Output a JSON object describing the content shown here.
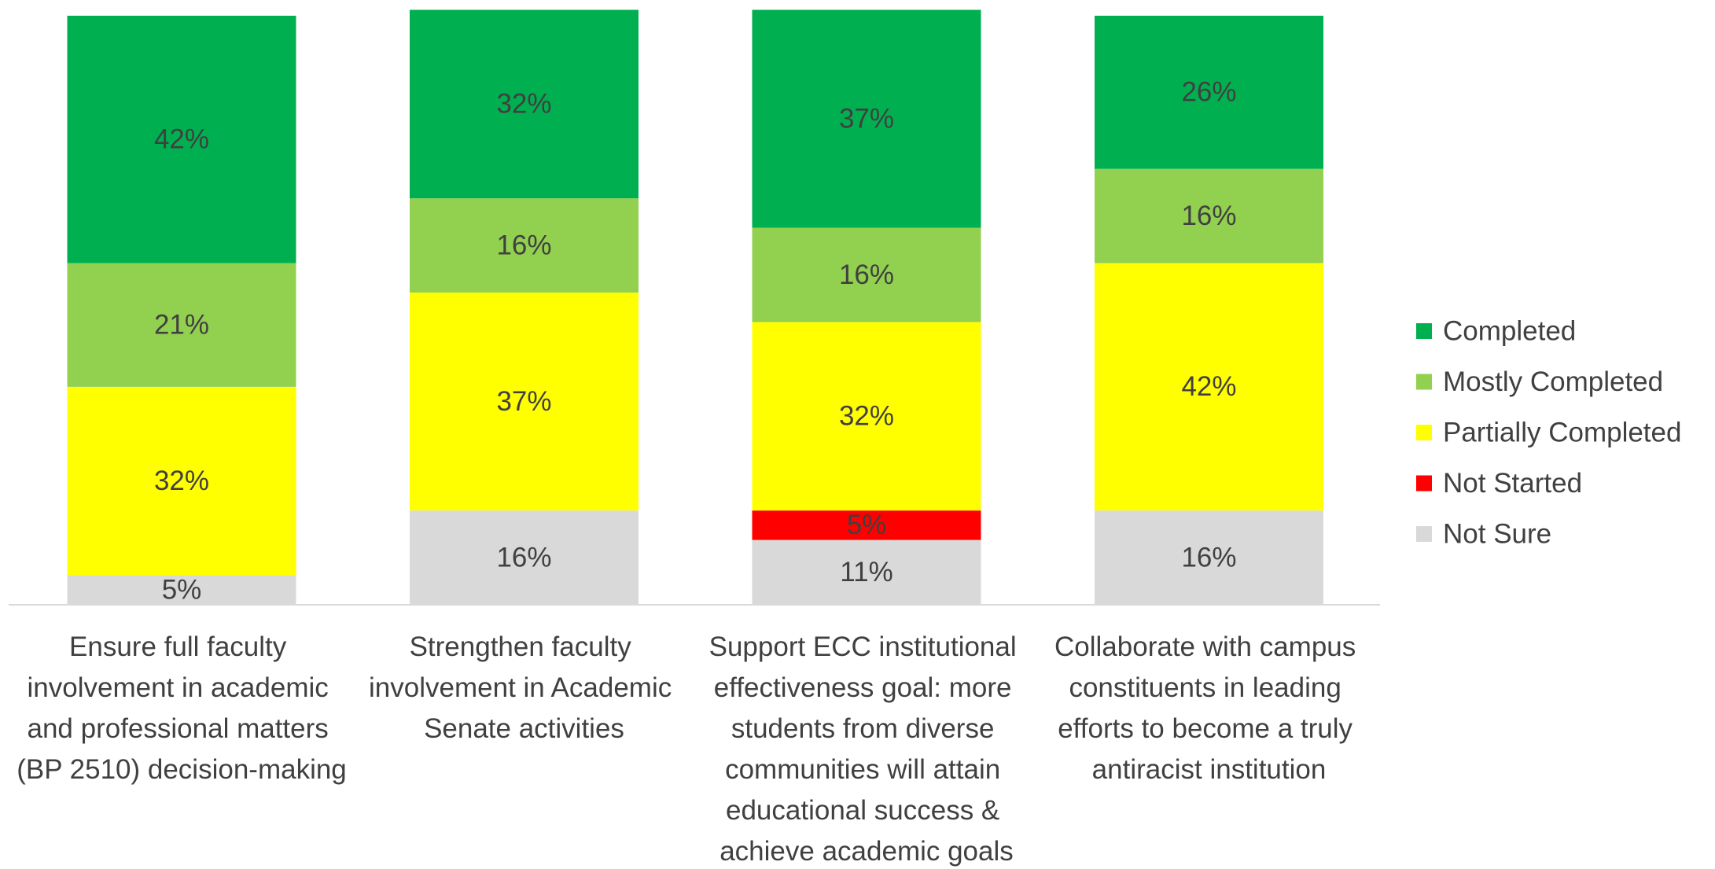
{
  "chart_data": {
    "type": "stacked_bar",
    "categories": [
      "Ensure full faculty involvement in academic and professional matters (BP 2510) decision-making",
      "Strengthen faculty involvement in Academic Senate activities",
      "Support ECC institutional effectiveness goal: more students from diverse communities will attain educational success & achieve academic goals",
      "Collaborate with campus constituents in leading efforts to become a truly antiracist institution"
    ],
    "series": [
      {
        "name": "Completed",
        "color": "#00b050",
        "values": [
          42,
          32,
          37,
          26
        ],
        "value_labels": [
          "42%",
          "32%",
          "37%",
          "26%"
        ]
      },
      {
        "name": "Mostly Completed",
        "color": "#92d050",
        "values": [
          21,
          16,
          16,
          16
        ],
        "value_labels": [
          "21%",
          "16%",
          "16%",
          "16%"
        ]
      },
      {
        "name": "Partially Completed",
        "color": "#ffff00",
        "values": [
          32,
          37,
          32,
          42
        ],
        "value_labels": [
          "32%",
          "37%",
          "32%",
          "42%"
        ]
      },
      {
        "name": "Not Started",
        "color": "#ff0000",
        "values": [
          0,
          0,
          5,
          0
        ],
        "value_labels": [
          null,
          null,
          "5%",
          null
        ]
      },
      {
        "name": "Not Sure",
        "color": "#d9d9d9",
        "values": [
          5,
          16,
          11,
          16
        ],
        "value_labels": [
          "5%",
          "16%",
          "11%",
          "16%"
        ]
      }
    ],
    "ylim": [
      0,
      100
    ],
    "legend": "right"
  }
}
